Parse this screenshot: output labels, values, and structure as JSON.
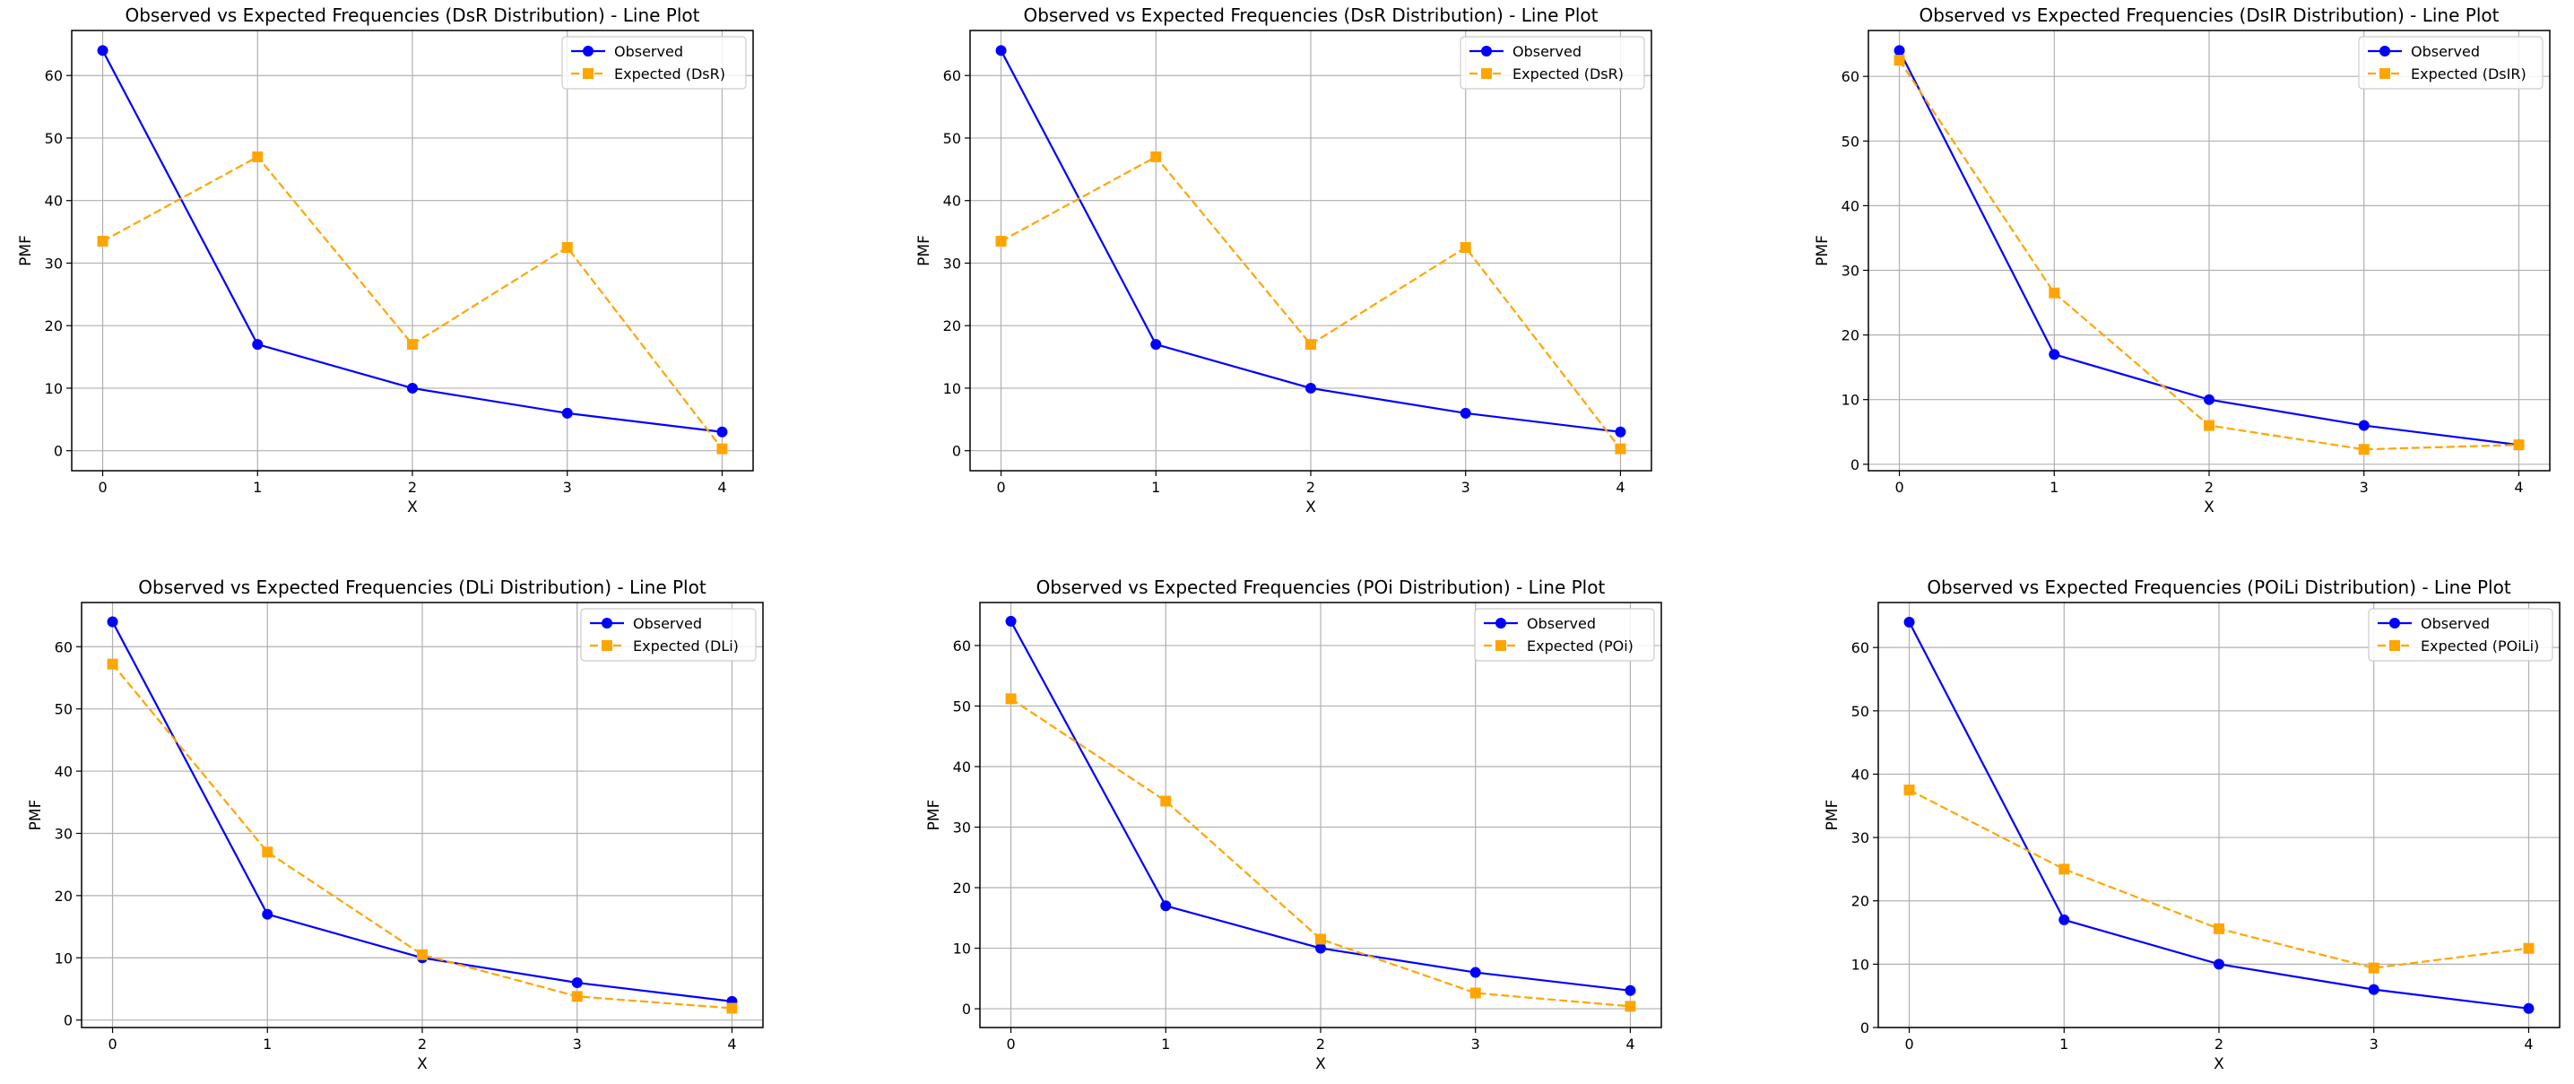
{
  "colors": {
    "observed": "#0000ff",
    "expected": "#ffa500",
    "grid": "#b0b0b0",
    "axis": "#000000"
  },
  "chart_data": [
    {
      "type": "line",
      "title": "Observed vs Expected Frequencies (DsR Distribution) - Line Plot",
      "xlabel": "X",
      "ylabel": "PMF",
      "x": [
        0,
        1,
        2,
        3,
        4
      ],
      "xticks": [
        "0",
        "1",
        "2",
        "3",
        "4"
      ],
      "yticks": [
        "0",
        "10",
        "20",
        "30",
        "40",
        "50",
        "60"
      ],
      "ylim": [
        -3.2,
        67.2
      ],
      "grid": true,
      "legend": "top-right",
      "series": [
        {
          "name": "Observed",
          "marker": "circle",
          "style": "solid",
          "values": [
            64,
            17,
            10,
            6,
            3
          ]
        },
        {
          "name": "Expected (DsR)",
          "marker": "square",
          "style": "dashed",
          "values": [
            33.5,
            47,
            17,
            32.5,
            0.3
          ]
        }
      ]
    },
    {
      "type": "line",
      "title": "Observed vs Expected Frequencies (DsR Distribution) - Line Plot",
      "xlabel": "X",
      "ylabel": "PMF",
      "x": [
        0,
        1,
        2,
        3,
        4
      ],
      "xticks": [
        "0",
        "1",
        "2",
        "3",
        "4"
      ],
      "yticks": [
        "0",
        "10",
        "20",
        "30",
        "40",
        "50",
        "60"
      ],
      "ylim": [
        -3.2,
        67.2
      ],
      "grid": true,
      "legend": "top-right",
      "series": [
        {
          "name": "Observed",
          "marker": "circle",
          "style": "solid",
          "values": [
            64,
            17,
            10,
            6,
            3
          ]
        },
        {
          "name": "Expected (DsR)",
          "marker": "square",
          "style": "dashed",
          "values": [
            33.5,
            47,
            17,
            32.5,
            0.3
          ]
        }
      ]
    },
    {
      "type": "line",
      "title": "Observed vs Expected Frequencies (DsIR Distribution) - Line Plot",
      "xlabel": "X",
      "ylabel": "PMF",
      "x": [
        0,
        1,
        2,
        3,
        4
      ],
      "xticks": [
        "0",
        "1",
        "2",
        "3",
        "4"
      ],
      "yticks": [
        "0",
        "10",
        "20",
        "30",
        "40",
        "50",
        "60"
      ],
      "ylim": [
        -1,
        67.1
      ],
      "grid": true,
      "legend": "top-right",
      "series": [
        {
          "name": "Observed",
          "marker": "circle",
          "style": "solid",
          "values": [
            64,
            17,
            10,
            6,
            3
          ]
        },
        {
          "name": "Expected (DsIR)",
          "marker": "square",
          "style": "dashed",
          "values": [
            62.5,
            26.5,
            6,
            2.3,
            3
          ]
        }
      ]
    },
    {
      "type": "line",
      "title": "Observed vs Expected Frequencies (DLi Distribution) - Line Plot",
      "xlabel": "X",
      "ylabel": "PMF",
      "x": [
        0,
        1,
        2,
        3,
        4
      ],
      "xticks": [
        "0",
        "1",
        "2",
        "3",
        "4"
      ],
      "yticks": [
        "0",
        "10",
        "20",
        "30",
        "40",
        "50",
        "60"
      ],
      "ylim": [
        -1.2,
        67.1
      ],
      "grid": true,
      "legend": "top-right",
      "series": [
        {
          "name": "Observed",
          "marker": "circle",
          "style": "solid",
          "values": [
            64,
            17,
            10,
            6,
            3
          ]
        },
        {
          "name": "Expected (DLi)",
          "marker": "square",
          "style": "dashed",
          "values": [
            57.2,
            27,
            10.5,
            3.8,
            1.9
          ]
        }
      ]
    },
    {
      "type": "line",
      "title": "Observed vs Expected Frequencies (POi Distribution) - Line Plot",
      "xlabel": "X",
      "ylabel": "PMF",
      "x": [
        0,
        1,
        2,
        3,
        4
      ],
      "xticks": [
        "0",
        "1",
        "2",
        "3",
        "4"
      ],
      "yticks": [
        "0",
        "10",
        "20",
        "30",
        "40",
        "50",
        "60"
      ],
      "ylim": [
        -3.1,
        67.1
      ],
      "grid": true,
      "legend": "top-right",
      "series": [
        {
          "name": "Observed",
          "marker": "circle",
          "style": "solid",
          "values": [
            64,
            17,
            10,
            6,
            3
          ]
        },
        {
          "name": "Expected (POi)",
          "marker": "square",
          "style": "dashed",
          "values": [
            51.2,
            34.3,
            11.5,
            2.6,
            0.4
          ]
        }
      ]
    },
    {
      "type": "line",
      "title": "Observed vs Expected Frequencies (POiLi Distribution) - Line Plot",
      "xlabel": "X",
      "ylabel": "PMF",
      "x": [
        0,
        1,
        2,
        3,
        4
      ],
      "xticks": [
        "0",
        "1",
        "2",
        "3",
        "4"
      ],
      "yticks": [
        "0",
        "10",
        "20",
        "30",
        "40",
        "50",
        "60"
      ],
      "ylim": [
        0,
        67.1
      ],
      "grid": true,
      "legend": "top-right",
      "series": [
        {
          "name": "Observed",
          "marker": "circle",
          "style": "solid",
          "values": [
            64,
            17,
            10,
            6,
            3
          ]
        },
        {
          "name": "Expected (POiLi)",
          "marker": "square",
          "style": "dashed",
          "values": [
            37.5,
            25,
            15.6,
            9.4,
            12.5
          ]
        }
      ]
    }
  ]
}
